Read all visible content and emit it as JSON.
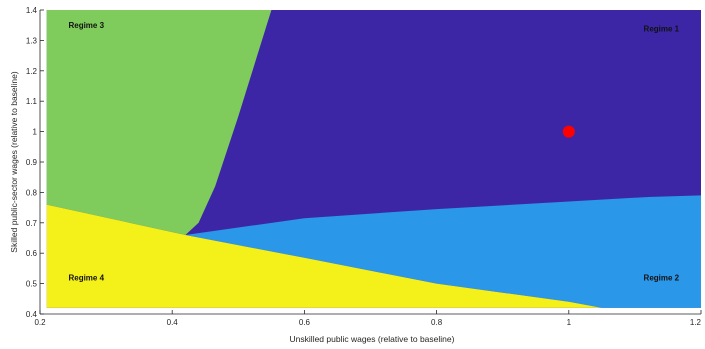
{
  "chart_data": {
    "type": "heatmap",
    "title": "",
    "xlabel": "Unskilled public wages (relative to baseline)",
    "ylabel": "Skilled public-sector wages (relative to baseline)",
    "xlim": [
      0.2,
      1.2
    ],
    "ylim": [
      0.4,
      1.4
    ],
    "x_ticks": [
      "0.2",
      "0.4",
      "0.6",
      "0.8",
      "1",
      "1.2"
    ],
    "y_ticks": [
      "0.4",
      "0.5",
      "0.6",
      "0.7",
      "0.8",
      "0.9",
      "1",
      "1.1",
      "1.2",
      "1.3",
      "1.4"
    ],
    "grid": false,
    "regimes": [
      {
        "name": "Regime 1",
        "color": "#3c26a6",
        "label_at": [
          1.14,
          1.33
        ]
      },
      {
        "name": "Regime 2",
        "color": "#2b97e8",
        "label_at": [
          1.14,
          0.51
        ]
      },
      {
        "name": "Regime 3",
        "color": "#7fcb5b",
        "label_at": [
          0.27,
          1.34
        ]
      },
      {
        "name": "Regime 4",
        "color": "#f4f01a",
        "label_at": [
          0.27,
          0.51
        ]
      }
    ],
    "boundaries": {
      "regime3_regime1": [
        [
          0.55,
          1.4
        ],
        [
          0.5,
          1.05
        ],
        [
          0.465,
          0.82
        ],
        [
          0.44,
          0.7
        ],
        [
          0.42,
          0.66
        ]
      ],
      "regime4_upper": [
        [
          0.21,
          0.76
        ],
        [
          0.42,
          0.66
        ]
      ],
      "regime4_regime2": [
        [
          0.42,
          0.66
        ],
        [
          0.6,
          0.585
        ],
        [
          0.8,
          0.5
        ],
        [
          1.0,
          0.44
        ],
        [
          1.05,
          0.42
        ]
      ],
      "regime1_regime2": [
        [
          0.42,
          0.66
        ],
        [
          0.6,
          0.715
        ],
        [
          0.8,
          0.745
        ],
        [
          1.0,
          0.77
        ],
        [
          1.12,
          0.785
        ],
        [
          1.2,
          0.79
        ]
      ],
      "regime4_bottom": 0.42
    },
    "baseline_point": {
      "x": 1.0,
      "y": 1.0,
      "color": "#ff0000"
    }
  }
}
